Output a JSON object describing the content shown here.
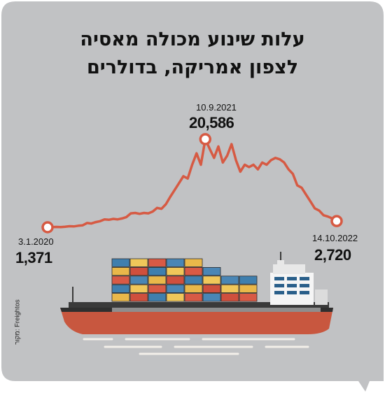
{
  "chart_data": {
    "type": "line",
    "title": "עלות שינוע מכולה מאסיה",
    "subtitle": "לצפון אמריקה, בדולרים",
    "source": "מקור: Freightos",
    "points": [
      {
        "label": "3.1.2020",
        "value": 1371,
        "display": "1,371"
      },
      {
        "label": "10.9.2021",
        "value": 20586,
        "display": "20,586"
      },
      {
        "label": "14.10.2022",
        "value": 2720,
        "display": "2,720"
      }
    ],
    "series_values": [
      1371,
      1400,
      1450,
      1420,
      1500,
      1600,
      1550,
      1700,
      1800,
      2300,
      2200,
      2500,
      2700,
      3100,
      3000,
      3200,
      3100,
      3300,
      3600,
      4400,
      4500,
      4300,
      4500,
      4400,
      4800,
      5600,
      5400,
      6400,
      8000,
      9500,
      11000,
      12500,
      12000,
      15000,
      17500,
      15000,
      20586,
      18500,
      16500,
      19000,
      15500,
      17000,
      19500,
      16000,
      13500,
      15000,
      14500,
      15000,
      14000,
      15500,
      15000,
      16000,
      16500,
      16200,
      15500,
      14000,
      13000,
      10500,
      10000,
      8500,
      7000,
      5500,
      5000,
      4000,
      3700,
      3300,
      2720
    ],
    "colors": {
      "line": "#d65a43",
      "panel": "#c1c2c4"
    }
  }
}
